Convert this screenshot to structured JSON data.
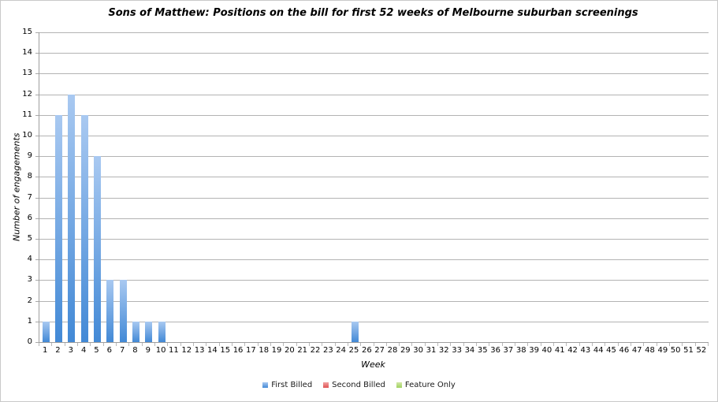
{
  "title": "Sons of Matthew: Positions on the bill for first 52 weeks of Melbourne suburban screenings",
  "axes": {
    "y_title": "Number of engagements",
    "x_title": "Week",
    "y_min": 0,
    "y_max": 15,
    "y_step": 1
  },
  "legend": [
    {
      "label": "First Billed",
      "color_top": "#a9c9f1",
      "color_bottom": "#4289d6"
    },
    {
      "label": "Second Billed",
      "color_top": "#f2a3a3",
      "color_bottom": "#df5353"
    },
    {
      "label": "Feature Only",
      "color_top": "#d3e8a8",
      "color_bottom": "#9fd15f"
    }
  ],
  "colors": {
    "bar_gradient_top": "#a9c9f1",
    "bar_gradient_bottom": "#4289d6",
    "gridline": "#b3b3b3",
    "axis": "#9e9e9e",
    "frame_border": "#c9c9c9"
  },
  "chart_data": {
    "type": "bar",
    "title": "Sons of Matthew: Positions on the bill for first 52 weeks of Melbourne suburban screenings",
    "xlabel": "Week",
    "ylabel": "Number of engagements",
    "ylim": [
      0,
      15
    ],
    "grid": true,
    "legend_position": "bottom",
    "categories": [
      1,
      2,
      3,
      4,
      5,
      6,
      7,
      8,
      9,
      10,
      11,
      12,
      13,
      14,
      15,
      16,
      17,
      18,
      19,
      20,
      21,
      22,
      23,
      24,
      25,
      26,
      27,
      28,
      29,
      30,
      31,
      32,
      33,
      34,
      35,
      36,
      37,
      38,
      39,
      40,
      41,
      42,
      43,
      44,
      45,
      46,
      47,
      48,
      49,
      50,
      51,
      52
    ],
    "series": [
      {
        "name": "First Billed",
        "values": [
          1,
          11,
          12,
          11,
          9,
          3,
          3,
          1,
          1,
          1,
          0,
          0,
          0,
          0,
          0,
          0,
          0,
          0,
          0,
          0,
          0,
          0,
          0,
          0,
          1,
          0,
          0,
          0,
          0,
          0,
          0,
          0,
          0,
          0,
          0,
          0,
          0,
          0,
          0,
          0,
          0,
          0,
          0,
          0,
          0,
          0,
          0,
          0,
          0,
          0,
          0,
          0
        ]
      },
      {
        "name": "Second Billed",
        "values": [
          0,
          0,
          0,
          0,
          0,
          0,
          0,
          0,
          0,
          0,
          0,
          0,
          0,
          0,
          0,
          0,
          0,
          0,
          0,
          0,
          0,
          0,
          0,
          0,
          0,
          0,
          0,
          0,
          0,
          0,
          0,
          0,
          0,
          0,
          0,
          0,
          0,
          0,
          0,
          0,
          0,
          0,
          0,
          0,
          0,
          0,
          0,
          0,
          0,
          0,
          0,
          0
        ]
      },
      {
        "name": "Feature Only",
        "values": [
          0,
          0,
          0,
          0,
          0,
          0,
          0,
          0,
          0,
          0,
          0,
          0,
          0,
          0,
          0,
          0,
          0,
          0,
          0,
          0,
          0,
          0,
          0,
          0,
          0,
          0,
          0,
          0,
          0,
          0,
          0,
          0,
          0,
          0,
          0,
          0,
          0,
          0,
          0,
          0,
          0,
          0,
          0,
          0,
          0,
          0,
          0,
          0,
          0,
          0,
          0,
          0
        ]
      }
    ]
  }
}
